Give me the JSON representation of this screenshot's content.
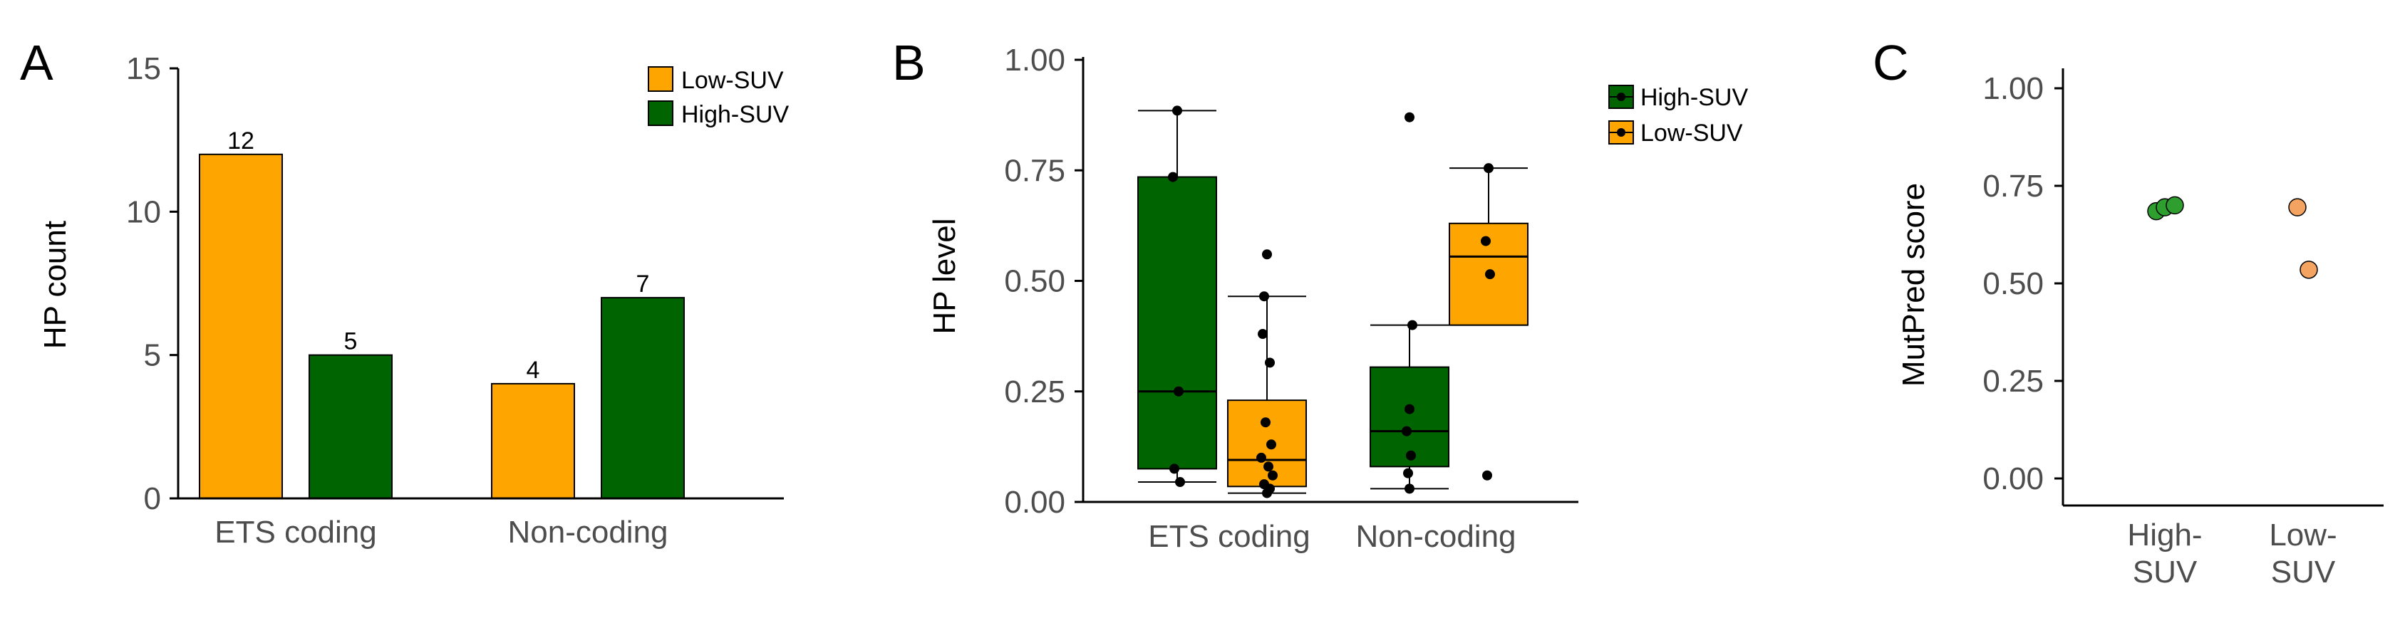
{
  "colors": {
    "low_suv": "#FFA500",
    "high_suv": "#006400",
    "high_suv_dot": "#2E9E2E",
    "low_suv_dot": "#F4A460",
    "axis": "#000000",
    "tick_text": "#4D4D4D"
  },
  "chart_data": [
    {
      "panel": "A",
      "type": "bar",
      "ylabel": "HP count",
      "xlabel": "",
      "ylim": [
        0,
        15
      ],
      "yticks": [
        "0",
        "5",
        "10",
        "15"
      ],
      "categories": [
        "ETS coding",
        "Non-coding"
      ],
      "series": [
        {
          "name": "Low-SUV",
          "values": [
            12,
            4
          ],
          "labels": [
            "12",
            "4"
          ]
        },
        {
          "name": "High-SUV",
          "values": [
            5,
            7
          ],
          "labels": [
            "5",
            "7"
          ]
        }
      ],
      "legend": [
        "Low-SUV",
        "High-SUV"
      ],
      "legend_position": "top-right"
    },
    {
      "panel": "B",
      "type": "box",
      "ylabel": "HP level",
      "ylim": [
        0,
        1
      ],
      "yticks": [
        "0.00",
        "0.25",
        "0.50",
        "0.75",
        "1.00"
      ],
      "categories": [
        "ETS coding",
        "Non-coding"
      ],
      "legend": [
        "High-SUV",
        "Low-SUV"
      ],
      "legend_position": "top-right",
      "boxes": [
        {
          "category": "ETS coding",
          "group": "High-SUV",
          "whisker_low": 0.045,
          "q1": 0.075,
          "median": 0.25,
          "q3": 0.735,
          "whisker_high": 0.885,
          "points": [
            0.885,
            0.735,
            0.25,
            0.075,
            0.045
          ]
        },
        {
          "category": "ETS coding",
          "group": "Low-SUV",
          "whisker_low": 0.02,
          "q1": 0.035,
          "median": 0.095,
          "q3": 0.23,
          "whisker_high": 0.465,
          "points": [
            0.56,
            0.465,
            0.38,
            0.315,
            0.18,
            0.13,
            0.1,
            0.08,
            0.06,
            0.04,
            0.03,
            0.02
          ]
        },
        {
          "category": "Non-coding",
          "group": "High-SUV",
          "whisker_low": 0.03,
          "q1": 0.08,
          "median": 0.16,
          "q3": 0.305,
          "whisker_high": 0.4,
          "points": [
            0.87,
            0.4,
            0.21,
            0.16,
            0.105,
            0.065,
            0.03
          ]
        },
        {
          "category": "Non-coding",
          "group": "Low-SUV",
          "whisker_low": 0.4,
          "q1": 0.4,
          "median": 0.555,
          "q3": 0.63,
          "whisker_high": 0.755,
          "points": [
            0.755,
            0.59,
            0.515,
            0.06
          ]
        }
      ]
    },
    {
      "panel": "C",
      "type": "scatter",
      "ylabel": "MutPred score",
      "ylim": [
        0,
        1
      ],
      "yticks": [
        "0.00",
        "0.25",
        "0.50",
        "0.75",
        "1.00"
      ],
      "categories": [
        "High-SUV",
        "Low-SUV"
      ],
      "category_labels": [
        [
          "High-",
          "SUV"
        ],
        [
          "Low-",
          "SUV"
        ]
      ],
      "series": [
        {
          "name": "High-SUV",
          "points": [
            {
              "x": "High-SUV",
              "y": 0.685
            },
            {
              "x": "High-SUV",
              "y": 0.695
            },
            {
              "x": "High-SUV",
              "y": 0.7
            }
          ]
        },
        {
          "name": "Low-SUV",
          "points": [
            {
              "x": "Low-SUV",
              "y": 0.695
            },
            {
              "x": "Low-SUV",
              "y": 0.535
            }
          ]
        }
      ]
    }
  ],
  "panel_labels": [
    "A",
    "B",
    "C"
  ]
}
